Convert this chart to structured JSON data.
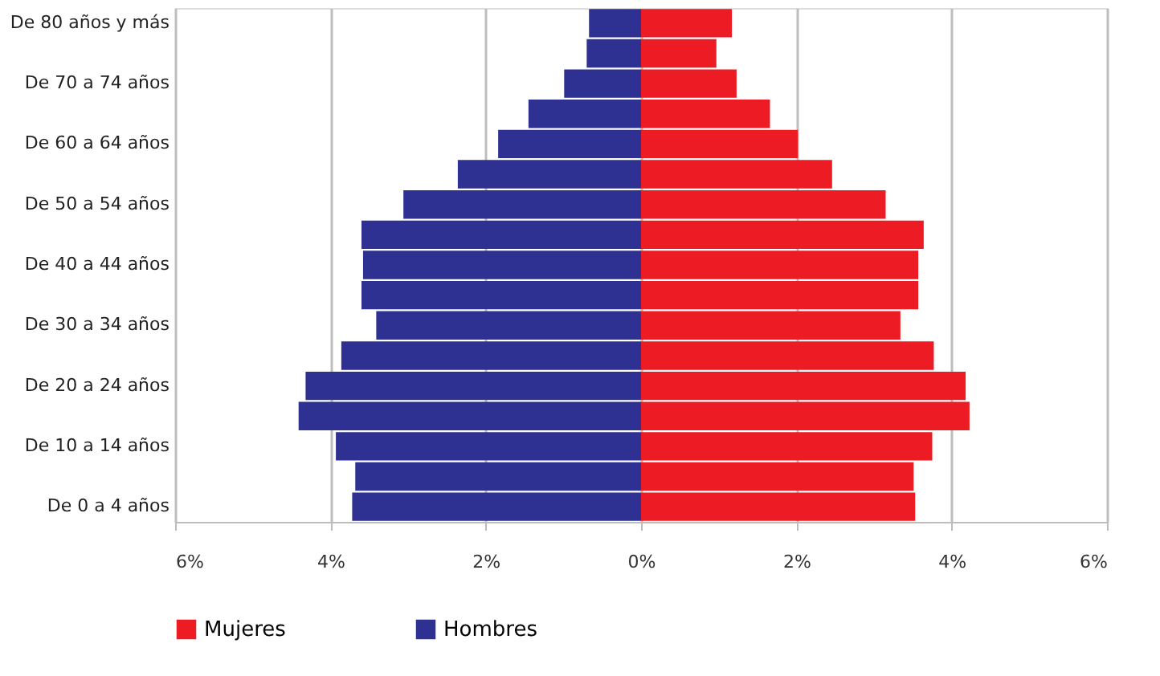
{
  "chart_data": {
    "type": "bar",
    "orientation": "horizontal",
    "stacked": true,
    "categories": [
      "De 80 años y más",
      null,
      "De 70 a 74 años",
      null,
      "De 60 a 64 años",
      null,
      "De 50 a 54 años",
      null,
      "De 40 a 44 años",
      null,
      "De 30 a 34 años",
      null,
      "De 20 a 24 años",
      null,
      "De 10 a 14 años",
      null,
      "De 0 a 4 años"
    ],
    "series": [
      {
        "name": "Mujeres",
        "color": "#ed1c24",
        "values": [
          1.17,
          0.97,
          1.23,
          1.66,
          2.02,
          2.46,
          3.15,
          3.64,
          3.57,
          3.57,
          3.34,
          3.77,
          4.18,
          4.23,
          3.75,
          3.51,
          3.53
        ]
      },
      {
        "name": "Hombres",
        "color": "#2e3192",
        "values": [
          -0.67,
          -0.7,
          -0.99,
          -1.45,
          -1.84,
          -2.36,
          -3.06,
          -3.6,
          -3.58,
          -3.6,
          -3.41,
          -3.86,
          -4.32,
          -4.41,
          -3.93,
          -3.68,
          -3.72
        ]
      }
    ],
    "xlim": [
      -6,
      6
    ],
    "xticks": [
      {
        "value": -6,
        "label": "6%"
      },
      {
        "value": -4,
        "label": "4%"
      },
      {
        "value": -2,
        "label": "2%"
      },
      {
        "value": 0,
        "label": "0%"
      },
      {
        "value": 2,
        "label": "2%"
      },
      {
        "value": 4,
        "label": "4%"
      },
      {
        "value": 6,
        "label": "6%"
      }
    ],
    "grid": "x",
    "legend": "bottom"
  }
}
